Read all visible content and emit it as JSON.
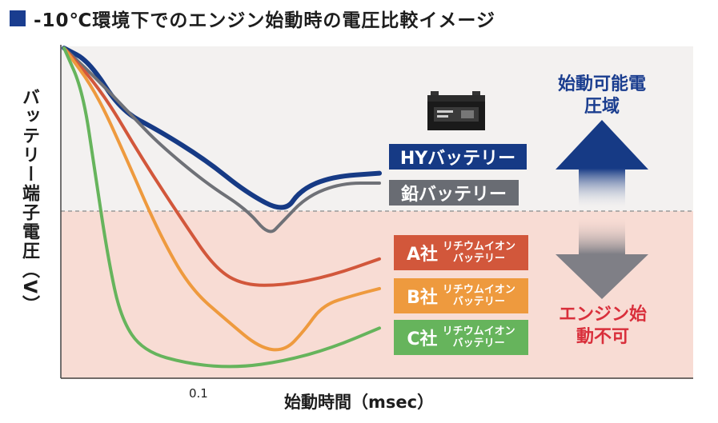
{
  "title": "-10℃環境下でのエンジン始動時の電圧比較イメージ",
  "colors": {
    "title_marker": "#1a3d8f",
    "ok_zone_bg": "#f3f1f0",
    "ng_zone_bg": "#f8dcd4",
    "hy": "#163a85",
    "lead": "#6f7177",
    "a": "#d2573b",
    "b": "#ee9a3e",
    "c": "#66b45c",
    "ok_arrow": "#163a85",
    "ng_arrow": "#7f7f86",
    "ok_text": "#1a3d8f",
    "ng_text": "#d92f3b"
  },
  "chart_data": {
    "type": "line",
    "title": "-10℃環境下でのエンジン始動時の電圧比較イメージ",
    "xlabel": "始動時間（msec）",
    "ylabel": "バッテリー端子電圧（V）",
    "x_ticks": [
      "0.1"
    ],
    "threshold_note": "dashed boundary between 始動可能電圧域 and エンジン始動不可",
    "series": [
      {
        "name": "HYバッテリー",
        "color_key": "hy",
        "points": [
          [
            0.0,
            0.99
          ],
          [
            0.08,
            0.95
          ],
          [
            0.18,
            0.8
          ],
          [
            0.3,
            0.74
          ],
          [
            0.45,
            0.65
          ],
          [
            0.58,
            0.55
          ],
          [
            0.7,
            0.49
          ],
          [
            0.75,
            0.56
          ],
          [
            0.85,
            0.6
          ],
          [
            1.0,
            0.61
          ]
        ]
      },
      {
        "name": "鉛バッテリー",
        "color_key": "lead",
        "points": [
          [
            0.0,
            0.99
          ],
          [
            0.1,
            0.9
          ],
          [
            0.22,
            0.78
          ],
          [
            0.3,
            0.7
          ],
          [
            0.45,
            0.58
          ],
          [
            0.58,
            0.5
          ],
          [
            0.65,
            0.42
          ],
          [
            0.69,
            0.46
          ],
          [
            0.77,
            0.54
          ],
          [
            0.88,
            0.58
          ],
          [
            1.0,
            0.58
          ]
        ]
      },
      {
        "name": "A社 リチウムイオンバッテリー",
        "color_key": "a",
        "points": [
          [
            0.0,
            0.99
          ],
          [
            0.12,
            0.86
          ],
          [
            0.25,
            0.65
          ],
          [
            0.38,
            0.46
          ],
          [
            0.48,
            0.32
          ],
          [
            0.57,
            0.27
          ],
          [
            0.7,
            0.27
          ],
          [
            0.85,
            0.3
          ],
          [
            1.0,
            0.35
          ]
        ]
      },
      {
        "name": "B社 リチウムイオンバッテリー",
        "color_key": "b",
        "points": [
          [
            0.0,
            0.99
          ],
          [
            0.1,
            0.86
          ],
          [
            0.2,
            0.65
          ],
          [
            0.3,
            0.43
          ],
          [
            0.4,
            0.26
          ],
          [
            0.52,
            0.16
          ],
          [
            0.62,
            0.08
          ],
          [
            0.7,
            0.07
          ],
          [
            0.76,
            0.13
          ],
          [
            0.82,
            0.21
          ],
          [
            0.92,
            0.24
          ],
          [
            1.0,
            0.26
          ]
        ]
      },
      {
        "name": "C社 リチウムイオンバッテリー",
        "color_key": "c",
        "points": [
          [
            0.0,
            0.99
          ],
          [
            0.06,
            0.86
          ],
          [
            0.1,
            0.6
          ],
          [
            0.14,
            0.35
          ],
          [
            0.18,
            0.17
          ],
          [
            0.25,
            0.07
          ],
          [
            0.4,
            0.03
          ],
          [
            0.55,
            0.02
          ],
          [
            0.7,
            0.04
          ],
          [
            0.85,
            0.08
          ],
          [
            1.0,
            0.14
          ]
        ]
      }
    ]
  },
  "labels": {
    "hy": "HYバッテリー",
    "lead": "鉛バッテリー",
    "a_co": "A社",
    "b_co": "B社",
    "c_co": "C社",
    "li_line1": "リチウムイオン",
    "li_line2": "バッテリー",
    "ok_zone": "始動可能電圧域",
    "ng_zone": "エンジン始動不可",
    "xtick": "0.1",
    "xlabel": "始動時間（msec）",
    "ylabel": "バッテリー端子電圧（V）"
  }
}
